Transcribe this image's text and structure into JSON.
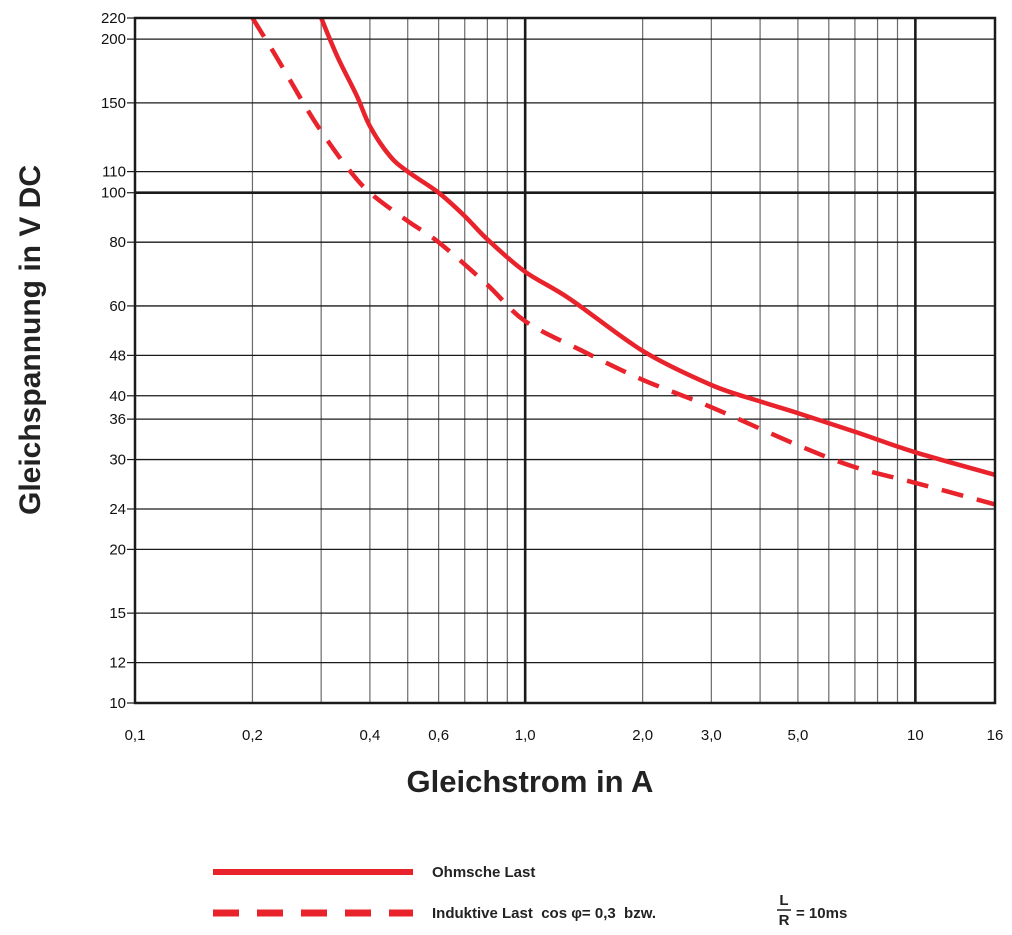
{
  "chart_data": {
    "type": "line",
    "xlabel": "Gleichstrom in A",
    "ylabel": "Gleichspannung in V DC",
    "x_scale": "log",
    "y_scale": "log",
    "xlim": [
      0.1,
      16
    ],
    "ylim": [
      10,
      220
    ],
    "x_ticks": [
      {
        "value": 0.1,
        "label": "0,1"
      },
      {
        "value": 0.2,
        "label": "0,2"
      },
      {
        "value": 0.4,
        "label": "0,4"
      },
      {
        "value": 0.6,
        "label": "0,6"
      },
      {
        "value": 1.0,
        "label": "1,0"
      },
      {
        "value": 2.0,
        "label": "2,0"
      },
      {
        "value": 3.0,
        "label": "3,0"
      },
      {
        "value": 5.0,
        "label": "5,0"
      },
      {
        "value": 10,
        "label": "10"
      },
      {
        "value": 16,
        "label": "16"
      }
    ],
    "y_ticks": [
      {
        "value": 10,
        "label": "10"
      },
      {
        "value": 12,
        "label": "12"
      },
      {
        "value": 15,
        "label": "15"
      },
      {
        "value": 20,
        "label": "20"
      },
      {
        "value": 24,
        "label": "24"
      },
      {
        "value": 30,
        "label": "30"
      },
      {
        "value": 36,
        "label": "36"
      },
      {
        "value": 40,
        "label": "40"
      },
      {
        "value": 48,
        "label": "48"
      },
      {
        "value": 60,
        "label": "60"
      },
      {
        "value": 80,
        "label": "80"
      },
      {
        "value": 100,
        "label": "100"
      },
      {
        "value": 110,
        "label": "110"
      },
      {
        "value": 150,
        "label": "150"
      },
      {
        "value": 200,
        "label": "200"
      },
      {
        "value": 220,
        "label": "220"
      }
    ],
    "x_gridlines": [
      0.2,
      0.3,
      0.4,
      0.5,
      0.6,
      0.7,
      0.8,
      0.9,
      1,
      2,
      3,
      4,
      5,
      6,
      7,
      8,
      9,
      10
    ],
    "y_gridlines": [
      12,
      15,
      20,
      24,
      30,
      36,
      40,
      48,
      60,
      80,
      100,
      110,
      150,
      200
    ],
    "bold_x_gridlines": [
      1,
      10
    ],
    "bold_y_gridlines": [
      100
    ],
    "grid": true,
    "legend_position": "bottom",
    "series": [
      {
        "name": "Ohmsche Last",
        "style": "solid",
        "color": "#e8232b",
        "points": [
          [
            0.3,
            220
          ],
          [
            0.33,
            185
          ],
          [
            0.37,
            155
          ],
          [
            0.4,
            135
          ],
          [
            0.45,
            118
          ],
          [
            0.5,
            110
          ],
          [
            0.6,
            100
          ],
          [
            0.7,
            90
          ],
          [
            0.8,
            81
          ],
          [
            1.0,
            70
          ],
          [
            1.3,
            62
          ],
          [
            2.0,
            49
          ],
          [
            3.0,
            42
          ],
          [
            4.0,
            39
          ],
          [
            5.0,
            37
          ],
          [
            7.0,
            34
          ],
          [
            10.0,
            31
          ],
          [
            16.0,
            28
          ]
        ]
      },
      {
        "name": "Induktive Last",
        "style": "dashed",
        "color": "#e8232b",
        "points": [
          [
            0.2,
            220
          ],
          [
            0.23,
            185
          ],
          [
            0.27,
            150
          ],
          [
            0.3,
            132
          ],
          [
            0.35,
            112
          ],
          [
            0.4,
            100
          ],
          [
            0.5,
            88
          ],
          [
            0.6,
            80
          ],
          [
            0.8,
            66
          ],
          [
            1.0,
            56
          ],
          [
            1.4,
            49
          ],
          [
            2.0,
            43
          ],
          [
            3.0,
            38
          ],
          [
            5.0,
            32
          ],
          [
            7.0,
            29
          ],
          [
            10.0,
            27
          ],
          [
            16.0,
            24.5
          ]
        ]
      }
    ],
    "legend": [
      {
        "style": "solid",
        "text": "Ohmsche Last"
      },
      {
        "style": "dashed",
        "text": "Induktive Last  cos φ= 0,3  bzw.",
        "fraction_num": "L",
        "fraction_den": "R",
        "suffix": "= 10ms"
      }
    ],
    "colors": {
      "series": "#e8232b",
      "grid": "#6b6b6b",
      "frame": "#1a1a1a"
    }
  }
}
